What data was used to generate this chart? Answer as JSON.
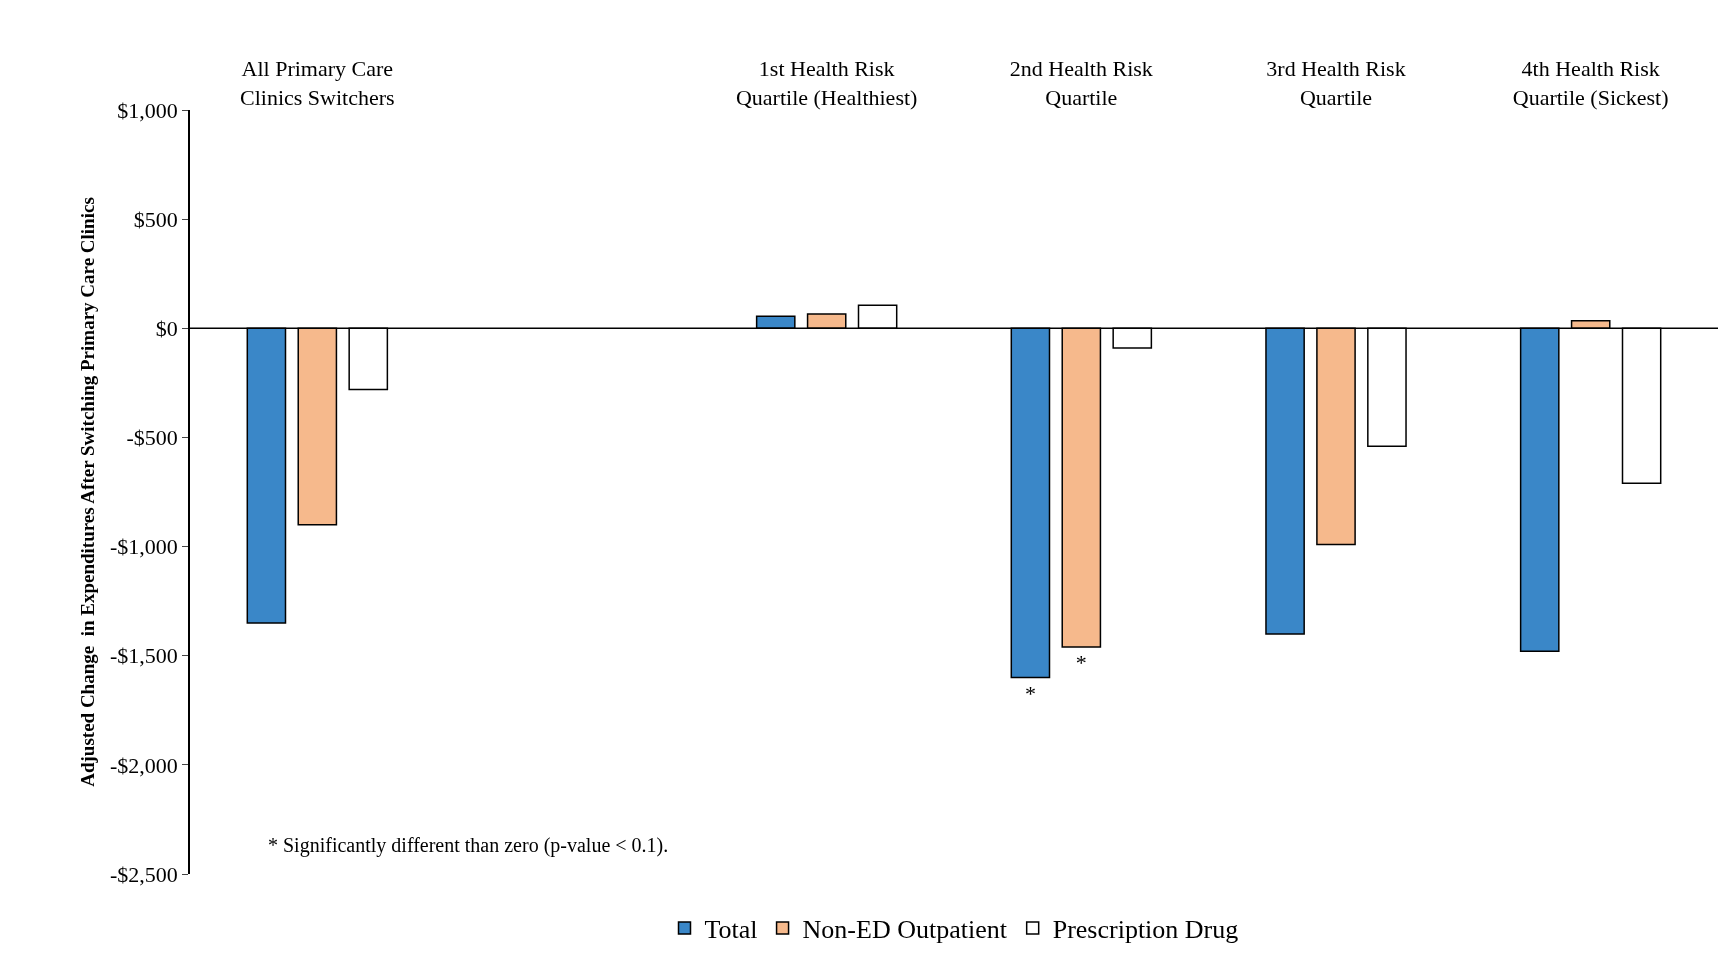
{
  "chart_data": {
    "type": "bar",
    "ylabel": "Adjusted Change  in Expenditures After Switching Primary Care Clinics",
    "categories": [
      "All Primary Care\nClinics Switchers",
      null,
      "1st Health Risk\nQuartile (Healthiest)",
      "2nd Health Risk\nQuartile",
      "3rd Health Risk\nQuartile",
      "4th Health Risk\nQuartile (Sickest)"
    ],
    "series": [
      {
        "name": "Total",
        "color": "#3a87c8",
        "values": [
          -1350,
          null,
          55,
          -1600,
          -1400,
          -1480
        ],
        "value_labels": [
          null,
          null,
          null,
          "*",
          null,
          null
        ]
      },
      {
        "name": "Non-ED Outpatient",
        "color": "#f6b98c",
        "values": [
          -900,
          null,
          65,
          -1460,
          -990,
          35
        ],
        "value_labels": [
          null,
          null,
          null,
          "*",
          null,
          null
        ]
      },
      {
        "name": "Prescription Drug",
        "color": "#ffffff",
        "values": [
          -280,
          null,
          105,
          -90,
          -540,
          -710
        ]
      }
    ],
    "ylim": [
      -2500,
      1000
    ],
    "yticks": [
      {
        "value": -2500,
        "label": "-$2,500"
      },
      {
        "value": -2000,
        "label": "-$2,000"
      },
      {
        "value": -1500,
        "label": "-$1,500"
      },
      {
        "value": -1000,
        "label": "-$1,000"
      },
      {
        "value": -500,
        "label": "-$500"
      },
      {
        "value": 0,
        "label": "$0"
      },
      {
        "value": 500,
        "label": "$500"
      },
      {
        "value": 1000,
        "label": "$1,000"
      }
    ],
    "ref_lines": [
      {
        "axis": "y",
        "value": 0,
        "color": "#000000"
      }
    ],
    "annotations": [
      "* Significantly different than zero (p-value < 0.1)."
    ],
    "grid": false,
    "legend": "bottom"
  }
}
